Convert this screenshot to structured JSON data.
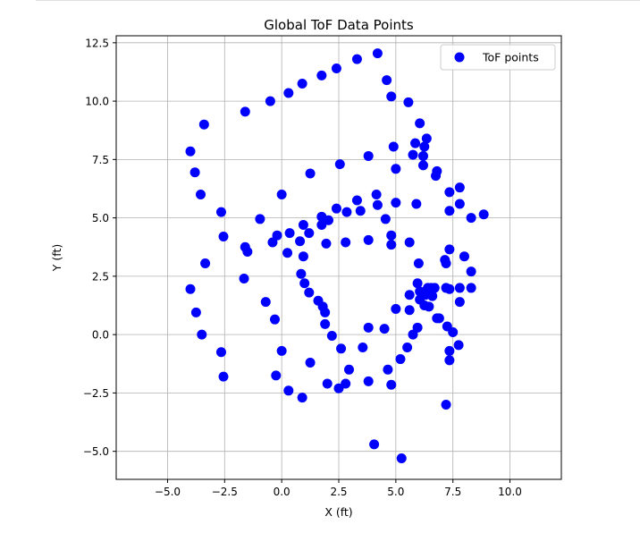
{
  "chart_data": {
    "type": "scatter",
    "title": "Global ToF Data Points",
    "xlabel": "X (ft)",
    "ylabel": "Y (ft)",
    "xlim": [
      -7.25,
      12.25
    ],
    "ylim": [
      -6.2,
      12.8
    ],
    "xticks": [
      -5.0,
      -2.5,
      0.0,
      2.5,
      5.0,
      7.5,
      10.0
    ],
    "yticks": [
      -5.0,
      -2.5,
      0.0,
      2.5,
      5.0,
      7.5,
      10.0,
      12.5
    ],
    "xtick_labels": [
      "−5.0",
      "−2.5",
      "0.0",
      "2.5",
      "5.0",
      "7.5",
      "10.0"
    ],
    "ytick_labels": [
      "−5.0",
      "−2.5",
      "0.0",
      "2.5",
      "5.0",
      "7.5",
      "10.0",
      "12.5"
    ],
    "grid": true,
    "legend_position": "top-right",
    "series": [
      {
        "name": "ToF points",
        "color": "#0000ff",
        "points": [
          [
            4.2,
            12.05
          ],
          [
            3.3,
            11.8
          ],
          [
            2.4,
            11.4
          ],
          [
            1.75,
            11.1
          ],
          [
            0.9,
            10.75
          ],
          [
            0.3,
            10.35
          ],
          [
            -0.5,
            10.0
          ],
          [
            -1.6,
            9.55
          ],
          [
            -3.4,
            9.0
          ],
          [
            -4.0,
            7.85
          ],
          [
            -3.8,
            6.95
          ],
          [
            -3.55,
            6.0
          ],
          [
            -2.65,
            5.25
          ],
          [
            -2.55,
            4.2
          ],
          [
            -3.35,
            3.05
          ],
          [
            -4.0,
            1.95
          ],
          [
            -3.75,
            0.95
          ],
          [
            -3.5,
            0.0
          ],
          [
            -2.65,
            -0.75
          ],
          [
            -2.55,
            -1.8
          ],
          [
            -1.65,
            2.4
          ],
          [
            -1.6,
            3.75
          ],
          [
            -1.5,
            3.55
          ],
          [
            -0.95,
            4.95
          ],
          [
            -0.7,
            1.4
          ],
          [
            -0.4,
            3.95
          ],
          [
            -0.3,
            0.65
          ],
          [
            -0.2,
            4.25
          ],
          [
            -0.25,
            -1.75
          ],
          [
            0.0,
            6.0
          ],
          [
            0.0,
            -0.7
          ],
          [
            0.25,
            3.5
          ],
          [
            0.3,
            -2.4
          ],
          [
            0.35,
            4.35
          ],
          [
            0.8,
            4.0
          ],
          [
            0.85,
            2.6
          ],
          [
            0.9,
            -2.7
          ],
          [
            0.95,
            3.35
          ],
          [
            0.95,
            4.7
          ],
          [
            1.0,
            2.2
          ],
          [
            1.2,
            4.35
          ],
          [
            1.2,
            1.8
          ],
          [
            1.25,
            -1.2
          ],
          [
            1.25,
            6.9
          ],
          [
            1.6,
            1.45
          ],
          [
            1.75,
            5.05
          ],
          [
            1.75,
            4.7
          ],
          [
            1.8,
            1.2
          ],
          [
            1.9,
            0.95
          ],
          [
            1.95,
            3.9
          ],
          [
            1.9,
            0.45
          ],
          [
            2.0,
            -2.1
          ],
          [
            2.05,
            4.9
          ],
          [
            2.2,
            -0.05
          ],
          [
            2.4,
            5.4
          ],
          [
            2.5,
            -2.3
          ],
          [
            2.55,
            7.3
          ],
          [
            2.6,
            -0.6
          ],
          [
            2.8,
            3.95
          ],
          [
            2.8,
            -2.1
          ],
          [
            2.85,
            5.25
          ],
          [
            2.95,
            -1.5
          ],
          [
            3.3,
            5.75
          ],
          [
            3.45,
            5.3
          ],
          [
            3.55,
            -0.55
          ],
          [
            3.8,
            7.65
          ],
          [
            3.8,
            4.05
          ],
          [
            3.8,
            0.3
          ],
          [
            3.8,
            -2.0
          ],
          [
            4.05,
            -4.7
          ],
          [
            4.15,
            6.0
          ],
          [
            4.2,
            5.55
          ],
          [
            4.5,
            0.25
          ],
          [
            4.55,
            4.95
          ],
          [
            4.6,
            10.9
          ],
          [
            4.65,
            -1.5
          ],
          [
            4.8,
            10.2
          ],
          [
            4.8,
            4.25
          ],
          [
            4.8,
            3.85
          ],
          [
            4.8,
            -2.15
          ],
          [
            4.9,
            8.05
          ],
          [
            5.0,
            7.1
          ],
          [
            5.0,
            5.65
          ],
          [
            5.0,
            1.1
          ],
          [
            5.2,
            -1.05
          ],
          [
            5.25,
            -5.3
          ],
          [
            5.5,
            -0.55
          ],
          [
            5.55,
            9.95
          ],
          [
            5.6,
            3.95
          ],
          [
            5.6,
            1.7
          ],
          [
            5.6,
            1.05
          ],
          [
            5.75,
            7.7
          ],
          [
            5.75,
            0.0
          ],
          [
            5.85,
            8.2
          ],
          [
            5.9,
            5.6
          ],
          [
            5.95,
            2.2
          ],
          [
            5.95,
            0.3
          ],
          [
            6.0,
            3.05
          ],
          [
            6.05,
            9.05
          ],
          [
            6.05,
            1.85
          ],
          [
            6.05,
            1.5
          ],
          [
            6.2,
            7.65
          ],
          [
            6.2,
            7.25
          ],
          [
            6.25,
            8.05
          ],
          [
            6.25,
            1.25
          ],
          [
            6.3,
            1.7
          ],
          [
            6.35,
            8.4
          ],
          [
            6.4,
            2.0
          ],
          [
            6.45,
            1.2
          ],
          [
            6.55,
            2.0
          ],
          [
            6.6,
            1.65
          ],
          [
            6.7,
            2.0
          ],
          [
            6.75,
            6.8
          ],
          [
            6.8,
            7.0
          ],
          [
            6.8,
            0.7
          ],
          [
            6.9,
            0.7
          ],
          [
            7.15,
            3.2
          ],
          [
            7.2,
            3.05
          ],
          [
            7.2,
            2.0
          ],
          [
            7.2,
            -3.0
          ],
          [
            7.25,
            0.35
          ],
          [
            7.35,
            6.1
          ],
          [
            7.35,
            5.3
          ],
          [
            7.35,
            3.65
          ],
          [
            7.35,
            1.95
          ],
          [
            7.35,
            -0.7
          ],
          [
            7.35,
            -1.1
          ],
          [
            7.5,
            0.1
          ],
          [
            7.75,
            -0.45
          ],
          [
            7.8,
            6.3
          ],
          [
            7.8,
            5.6
          ],
          [
            7.8,
            2.0
          ],
          [
            7.8,
            1.4
          ],
          [
            8.0,
            3.35
          ],
          [
            8.3,
            5.0
          ],
          [
            8.3,
            2.7
          ],
          [
            8.3,
            2.0
          ],
          [
            8.85,
            5.15
          ]
        ]
      }
    ]
  }
}
